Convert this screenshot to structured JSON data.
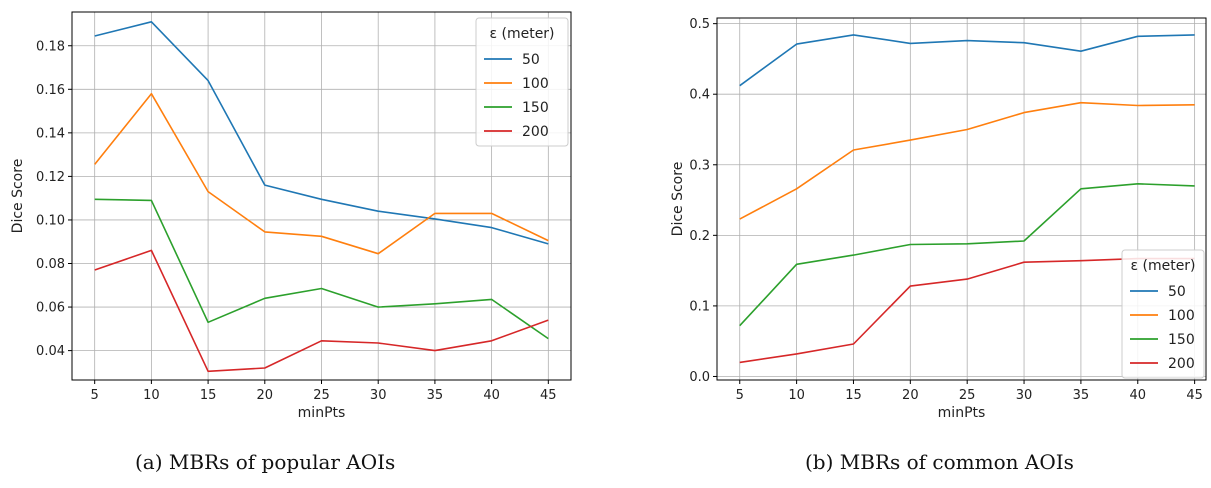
{
  "chart_data": [
    {
      "type": "line",
      "caption": "(a) MBRs of popular AOIs",
      "xlabel": "minPts",
      "ylabel": "Dice Score",
      "x": [
        5,
        10,
        15,
        20,
        25,
        30,
        35,
        40,
        45
      ],
      "xticks": [
        "5",
        "10",
        "15",
        "20",
        "25",
        "30",
        "35",
        "40",
        "45"
      ],
      "yticks": [
        "0.04",
        "0.06",
        "0.08",
        "0.10",
        "0.12",
        "0.14",
        "0.16",
        "0.18"
      ],
      "ytick_values": [
        0.04,
        0.06,
        0.08,
        0.1,
        0.12,
        0.14,
        0.16,
        0.18
      ],
      "xlim": [
        3,
        47
      ],
      "ylim": [
        0.0265,
        0.1955
      ],
      "grid": true,
      "legend": {
        "title": "ε (meter)",
        "placement": "top-right"
      },
      "series": [
        {
          "name": "50",
          "color": "#1f77b4",
          "values": [
            0.1845,
            0.191,
            0.164,
            0.116,
            0.1095,
            0.104,
            0.1005,
            0.0965,
            0.089
          ]
        },
        {
          "name": "100",
          "color": "#ff7f0e",
          "values": [
            0.1255,
            0.158,
            0.113,
            0.0945,
            0.0925,
            0.0845,
            0.103,
            0.103,
            0.0905
          ]
        },
        {
          "name": "150",
          "color": "#2ca02c",
          "values": [
            0.1095,
            0.109,
            0.053,
            0.064,
            0.0685,
            0.06,
            0.0615,
            0.0635,
            0.0455
          ]
        },
        {
          "name": "200",
          "color": "#d62728",
          "values": [
            0.077,
            0.086,
            0.0305,
            0.032,
            0.0445,
            0.0435,
            0.04,
            0.0445,
            0.054
          ]
        }
      ]
    },
    {
      "type": "line",
      "caption": "(b) MBRs of common AOIs",
      "xlabel": "minPts",
      "ylabel": "Dice Score",
      "x": [
        5,
        10,
        15,
        20,
        25,
        30,
        35,
        40,
        45
      ],
      "xticks": [
        "5",
        "10",
        "15",
        "20",
        "25",
        "30",
        "35",
        "40",
        "45"
      ],
      "yticks": [
        "0.0",
        "0.1",
        "0.2",
        "0.3",
        "0.4",
        "0.5"
      ],
      "ytick_values": [
        0.0,
        0.1,
        0.2,
        0.3,
        0.4,
        0.5
      ],
      "xlim": [
        3,
        46
      ],
      "ylim": [
        -0.005,
        0.508
      ],
      "grid": true,
      "legend": {
        "title": "ε (meter)",
        "placement": "lower-right"
      },
      "series": [
        {
          "name": "50",
          "color": "#1f77b4",
          "values": [
            0.412,
            0.471,
            0.484,
            0.472,
            0.476,
            0.473,
            0.461,
            0.482,
            0.484
          ]
        },
        {
          "name": "100",
          "color": "#ff7f0e",
          "values": [
            0.223,
            0.266,
            0.321,
            0.335,
            0.35,
            0.374,
            0.388,
            0.384,
            0.385
          ]
        },
        {
          "name": "150",
          "color": "#2ca02c",
          "values": [
            0.072,
            0.159,
            0.172,
            0.187,
            0.188,
            0.192,
            0.266,
            0.273,
            0.27
          ]
        },
        {
          "name": "200",
          "color": "#d62728",
          "values": [
            0.02,
            0.032,
            0.046,
            0.128,
            0.138,
            0.162,
            0.164,
            0.167,
            0.167
          ]
        }
      ]
    }
  ]
}
